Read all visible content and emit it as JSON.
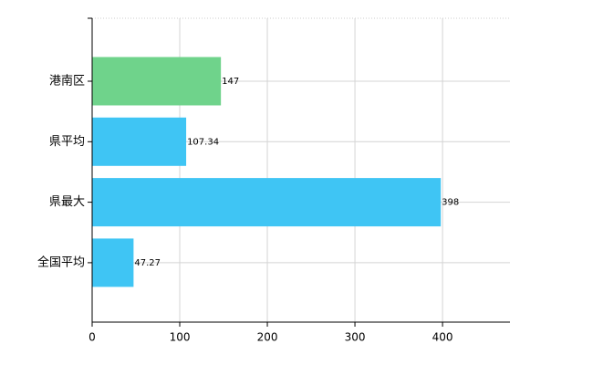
{
  "chart_data": {
    "type": "bar",
    "orientation": "horizontal",
    "categories": [
      "港南区",
      "県平均",
      "県最大",
      "全国平均"
    ],
    "values": [
      147,
      107.34,
      398,
      47.27
    ],
    "colors": [
      "#6fd38b",
      "#3fc5f4",
      "#3fc5f4",
      "#3fc5f4"
    ],
    "xlim": [
      0,
      477
    ],
    "xticks": [
      0,
      100,
      200,
      300,
      400
    ],
    "grid": true
  }
}
